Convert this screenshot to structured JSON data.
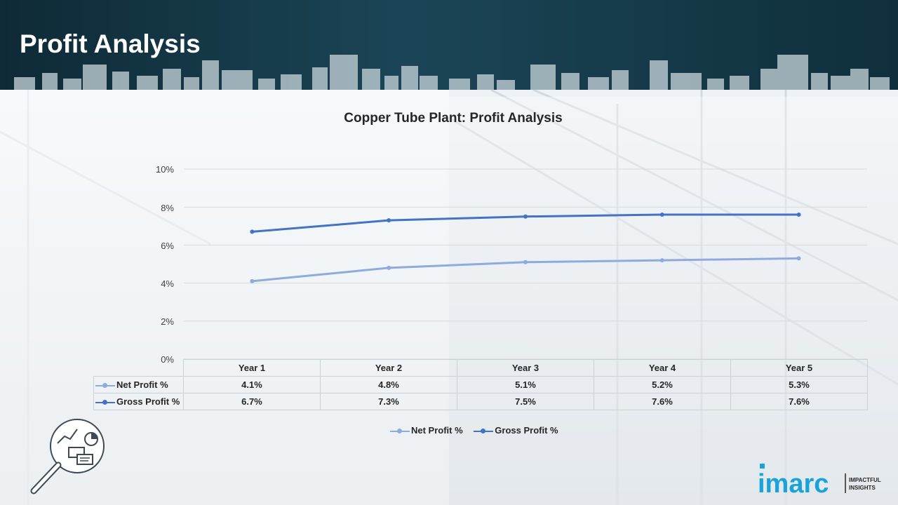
{
  "page": {
    "title": "Profit Analysis"
  },
  "colors": {
    "net_profit": "#8faadc",
    "gross_profit": "#4472c4",
    "banner": "#163b4a",
    "logo_accent": "#1aa3d9"
  },
  "chart_data": {
    "type": "line",
    "title": "Copper Tube Plant: Profit Analysis",
    "categories": [
      "Year 1",
      "Year 2",
      "Year 3",
      "Year 4",
      "Year 5"
    ],
    "series": [
      {
        "name": "Net Profit %",
        "values": [
          4.1,
          4.8,
          5.1,
          5.2,
          5.3
        ],
        "labels": [
          "4.1%",
          "4.8%",
          "5.1%",
          "5.2%",
          "5.3%"
        ]
      },
      {
        "name": "Gross Profit %",
        "values": [
          6.7,
          7.3,
          7.5,
          7.6,
          7.6
        ],
        "labels": [
          "6.7%",
          "7.3%",
          "7.5%",
          "7.6%",
          "7.6%"
        ]
      }
    ],
    "ylim": [
      0,
      10
    ],
    "yticks": [
      "0%",
      "2%",
      "4%",
      "6%",
      "8%",
      "10%"
    ],
    "grid": true,
    "legend": "bottom",
    "data_table": true
  },
  "logo": {
    "brand": "imarc",
    "tagline_line1": "IMPACTFUL",
    "tagline_line2": "INSIGHTS"
  },
  "icons": {
    "decoration": "magnifier-analytics-icon"
  }
}
